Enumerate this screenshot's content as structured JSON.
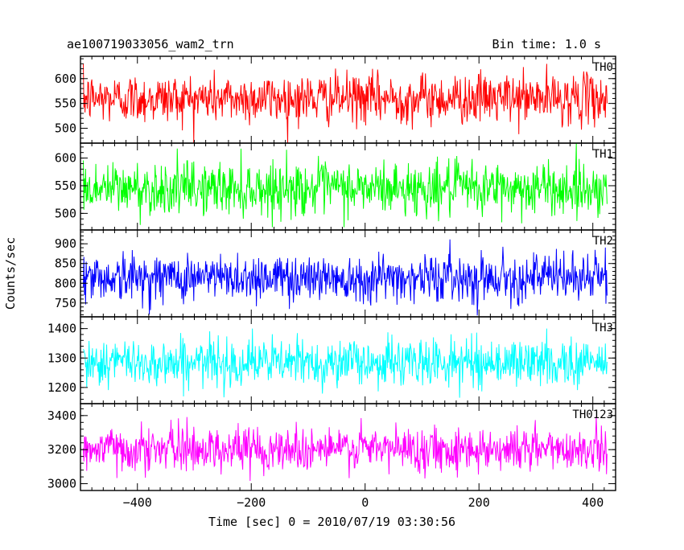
{
  "chart_data": {
    "type": "line",
    "title": "ae100719033056_wam2_trn",
    "bin_time_label": "Bin time: 1.0 s",
    "xlabel": "Time [sec] 0 = 2010/07/19 03:30:56",
    "ylabel": "Counts/sec",
    "xlim": [
      -500,
      440
    ],
    "x_ticks": [
      -400,
      -200,
      0,
      200,
      400
    ],
    "x_tick_labels": [
      "−400",
      "−200",
      "0",
      "200",
      "400"
    ],
    "x_range_data": [
      -495,
      425
    ],
    "bin_seconds": 1.0,
    "grid": false,
    "series": [
      {
        "name": "TH0",
        "color": "#ff0000",
        "ylim": [
          470,
          645
        ],
        "y_ticks": [
          500,
          550,
          600
        ],
        "y_tick_labels": [
          "500",
          "550",
          "600"
        ],
        "mean": 560,
        "sigma": 25,
        "min": 470,
        "max": 645
      },
      {
        "name": "TH1",
        "color": "#00ff00",
        "ylim": [
          470,
          627
        ],
        "y_ticks": [
          500,
          550,
          600
        ],
        "y_tick_labels": [
          "500",
          "550",
          "600"
        ],
        "mean": 545,
        "sigma": 24,
        "min": 475,
        "max": 627
      },
      {
        "name": "TH2",
        "color": "#0000ff",
        "ylim": [
          715,
          935
        ],
        "y_ticks": [
          750,
          800,
          850,
          900
        ],
        "y_tick_labels": [
          "750",
          "800",
          "850",
          "900"
        ],
        "mean": 815,
        "sigma": 30,
        "min": 718,
        "max": 935
      },
      {
        "name": "TH3",
        "color": "#00ffff",
        "ylim": [
          1145,
          1440
        ],
        "y_ticks": [
          1200,
          1300,
          1400
        ],
        "y_tick_labels": [
          "1200",
          "1300",
          "1400"
        ],
        "mean": 1285,
        "sigma": 40,
        "min": 1150,
        "max": 1420
      },
      {
        "name": "TH0123",
        "color": "#ff00ff",
        "ylim": [
          2960,
          3470
        ],
        "y_ticks": [
          3000,
          3200,
          3400
        ],
        "y_tick_labels": [
          "3000",
          "3200",
          "3400"
        ],
        "mean": 3205,
        "sigma": 65,
        "min": 2965,
        "max": 3450
      }
    ]
  }
}
